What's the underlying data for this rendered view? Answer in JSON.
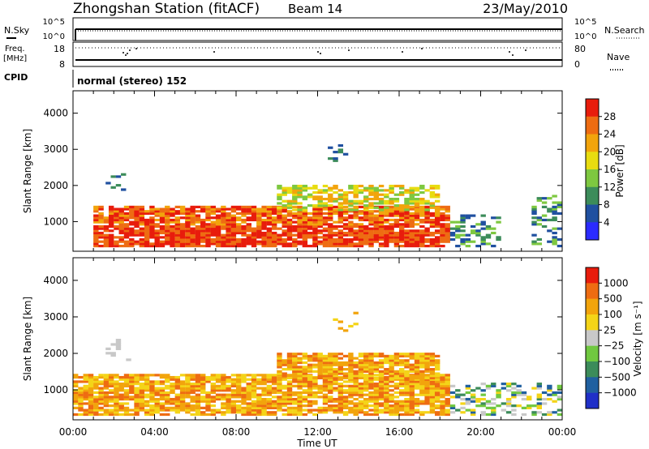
{
  "header": {
    "station": "Zhongshan Station (fitACF)",
    "beam": "Beam 14",
    "date": "23/May/2010"
  },
  "status_panels": {
    "nsky": {
      "label": "N.Sky",
      "left_ticks": [
        "10^5",
        "10^0"
      ],
      "right_label": "N.Search",
      "right_ticks": [
        "10^5",
        "10^0"
      ]
    },
    "freq": {
      "label_line1": "Freq.",
      "label_line2": "[MHz]",
      "left_ticks": [
        "18",
        "8"
      ],
      "right_label": "Nave",
      "right_ticks": [
        "80",
        "0"
      ]
    },
    "cpid": {
      "label": "CPID",
      "text": "normal (stereo) 152"
    }
  },
  "chart_data": [
    {
      "type": "heatmap",
      "name": "power-panel",
      "ylabel": "Slant Range [km]",
      "ylim": [
        180,
        4620
      ],
      "yticks": [
        "1000",
        "2000",
        "3000",
        "4000"
      ],
      "xlim_hours": [
        0,
        24
      ],
      "colorbar": {
        "label": "Power [dB]",
        "tick_labels": [
          "28",
          "24",
          "20",
          "16",
          "12",
          "8",
          "4"
        ],
        "colors": [
          "#2b2bff",
          "#2050a0",
          "#3c8c5a",
          "#7ec840",
          "#e8dc10",
          "#f2a40c",
          "#ee6c12",
          "#e81c0c"
        ]
      },
      "echo_regions": [
        {
          "t": [
            1.0,
            18.5
          ],
          "range": [
            300,
            1400
          ],
          "level": "strong"
        },
        {
          "t": [
            10.0,
            18.0
          ],
          "range": [
            1300,
            2000
          ],
          "level": "medium"
        },
        {
          "t": [
            12.5,
            14.0
          ],
          "range": [
            2600,
            3100
          ],
          "level": "sparse"
        },
        {
          "t": [
            1.6,
            2.8
          ],
          "range": [
            1800,
            2400
          ],
          "level": "sparse"
        },
        {
          "t": [
            18.5,
            21.0
          ],
          "range": [
            300,
            1200
          ],
          "level": "weak"
        },
        {
          "t": [
            22.5,
            24.0
          ],
          "range": [
            300,
            1700
          ],
          "level": "weak"
        }
      ]
    },
    {
      "type": "heatmap",
      "name": "velocity-panel",
      "ylabel": "Slant Range [km]",
      "ylim": [
        180,
        4620
      ],
      "yticks": [
        "1000",
        "2000",
        "3000",
        "4000"
      ],
      "xlim_hours": [
        0,
        24
      ],
      "colorbar": {
        "label": "Velocity [m s⁻¹]",
        "tick_labels": [
          "1000",
          "500",
          "100",
          "25",
          "−25",
          "−100",
          "−500",
          "−1000"
        ],
        "colors": [
          "#2030c8",
          "#2060a0",
          "#3c8c5a",
          "#70c840",
          "#c8c8c8",
          "#f4d418",
          "#f2a40c",
          "#ee6c12",
          "#e81c0c"
        ]
      },
      "echo_regions": [
        {
          "t": [
            0.0,
            18.5
          ],
          "range": [
            300,
            1400
          ],
          "level": "receding"
        },
        {
          "t": [
            10.0,
            18.0
          ],
          "range": [
            1300,
            2000
          ],
          "level": "receding"
        },
        {
          "t": [
            12.5,
            14.0
          ],
          "range": [
            2600,
            3100
          ],
          "level": "sparse"
        },
        {
          "t": [
            1.6,
            2.8
          ],
          "range": [
            1800,
            2400
          ],
          "level": "near-zero"
        },
        {
          "t": [
            18.5,
            24.0
          ],
          "range": [
            300,
            1200
          ],
          "level": "mixed"
        }
      ]
    }
  ],
  "x_axis": {
    "tick_labels": [
      "00:00",
      "04:00",
      "08:00",
      "12:00",
      "16:00",
      "20:00",
      "00:00"
    ],
    "label": "Time UT"
  }
}
